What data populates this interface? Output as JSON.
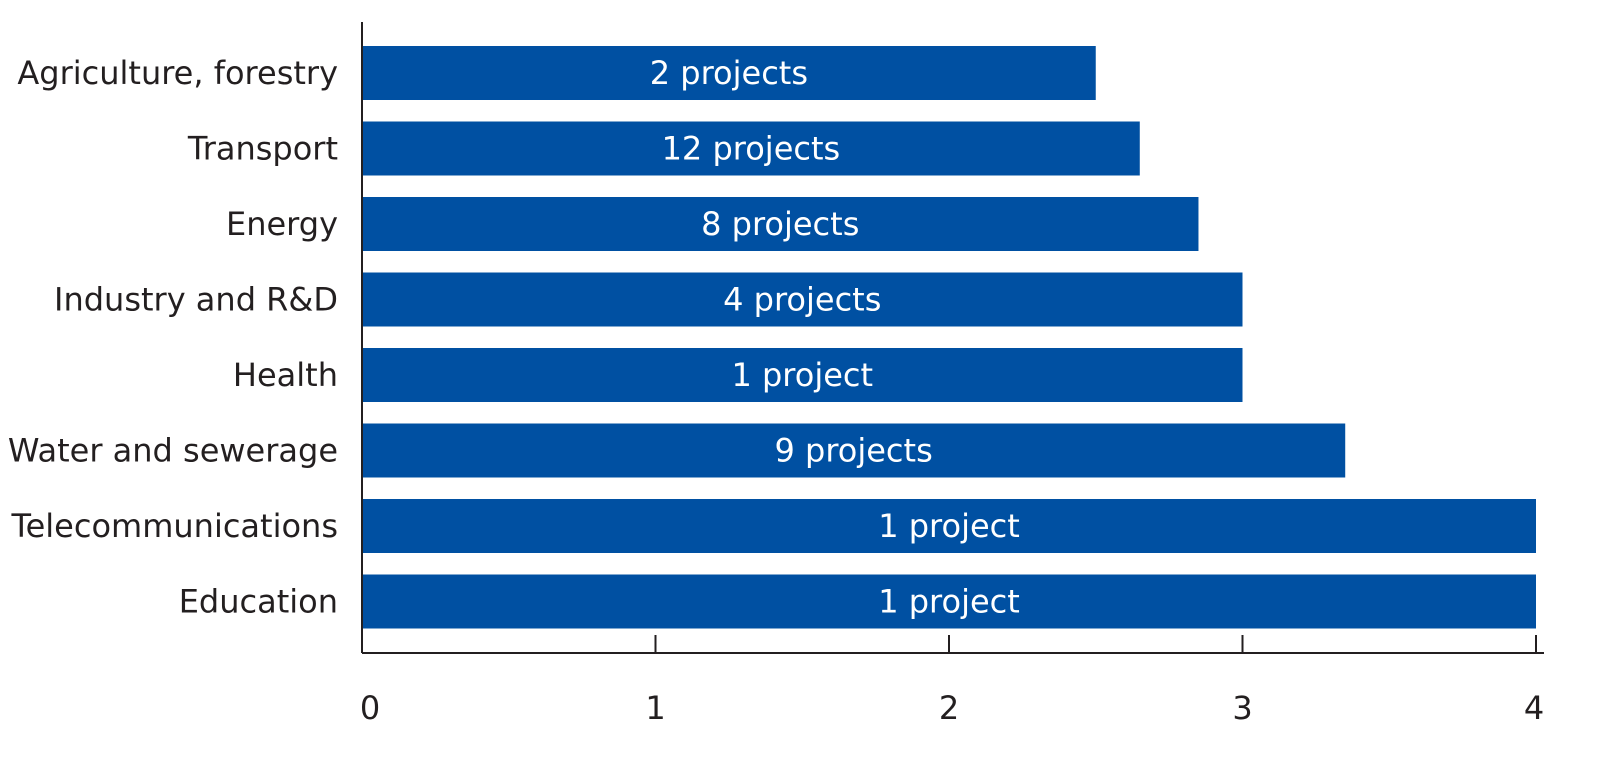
{
  "chart_data": {
    "type": "bar",
    "orientation": "horizontal",
    "categories": [
      "Agriculture, forestry",
      "Transport",
      "Energy",
      "Industry and R&D",
      "Health",
      "Water and sewerage",
      "Telecommunications",
      "Education"
    ],
    "values": [
      2.5,
      2.65,
      2.85,
      3.0,
      3.0,
      3.35,
      4.0,
      4.0
    ],
    "bar_labels": [
      "2 projects",
      "12 projects",
      "8 projects",
      "4 projects",
      "1 project",
      "9 projects",
      "1 project",
      "1 project"
    ],
    "xlim": [
      0,
      4
    ],
    "xticks": [
      0,
      1,
      2,
      3,
      4
    ],
    "grid": false,
    "legend": "none",
    "colors": {
      "bar": "#0050a2",
      "axis": "#231f20",
      "bar_text": "#ffffff"
    }
  }
}
